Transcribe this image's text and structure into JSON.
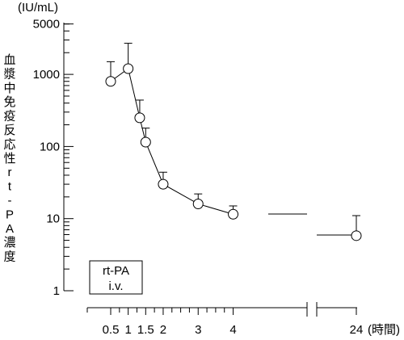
{
  "chart_data": {
    "type": "line",
    "title": "",
    "y_unit": "(IU/mL)",
    "ylabel": "血漿中免疫反応性rt-PA濃度",
    "y_scale": "log",
    "ylim": [
      1,
      5000
    ],
    "y_ticks": [
      {
        "value": 1,
        "label": "1"
      },
      {
        "value": 10,
        "label": "10"
      },
      {
        "value": 100,
        "label": "100"
      },
      {
        "value": 1000,
        "label": "1000"
      },
      {
        "value": 5000,
        "label": "5000"
      }
    ],
    "x_unit": "(時間)",
    "x_ticks": [
      {
        "value": 0.5,
        "label": "0.5"
      },
      {
        "value": 1,
        "label": "1"
      },
      {
        "value": 1.5,
        "label": "1.5"
      },
      {
        "value": 2,
        "label": "2"
      },
      {
        "value": 3,
        "label": "3"
      },
      {
        "value": 4,
        "label": "4"
      },
      {
        "value": 24,
        "label": "24"
      }
    ],
    "x_axis_break": true,
    "series": [
      {
        "points": [
          {
            "x": 0.5,
            "y": 800,
            "err_hi": 1500
          },
          {
            "x": 1,
            "y": 1200,
            "err_hi": 2700
          },
          {
            "x": 1.33,
            "y": 250,
            "err_hi": 440
          },
          {
            "x": 1.5,
            "y": 115,
            "err_hi": 180
          },
          {
            "x": 2,
            "y": 30,
            "err_hi": 44
          },
          {
            "x": 3,
            "y": 16,
            "err_hi": 22
          },
          {
            "x": 4,
            "y": 11.5,
            "err_hi": 15
          },
          {
            "x": 24,
            "y": 5.8,
            "err_hi": 11
          }
        ]
      }
    ],
    "legend_box": {
      "line1": "rt-PA",
      "line2": "i.v."
    }
  }
}
